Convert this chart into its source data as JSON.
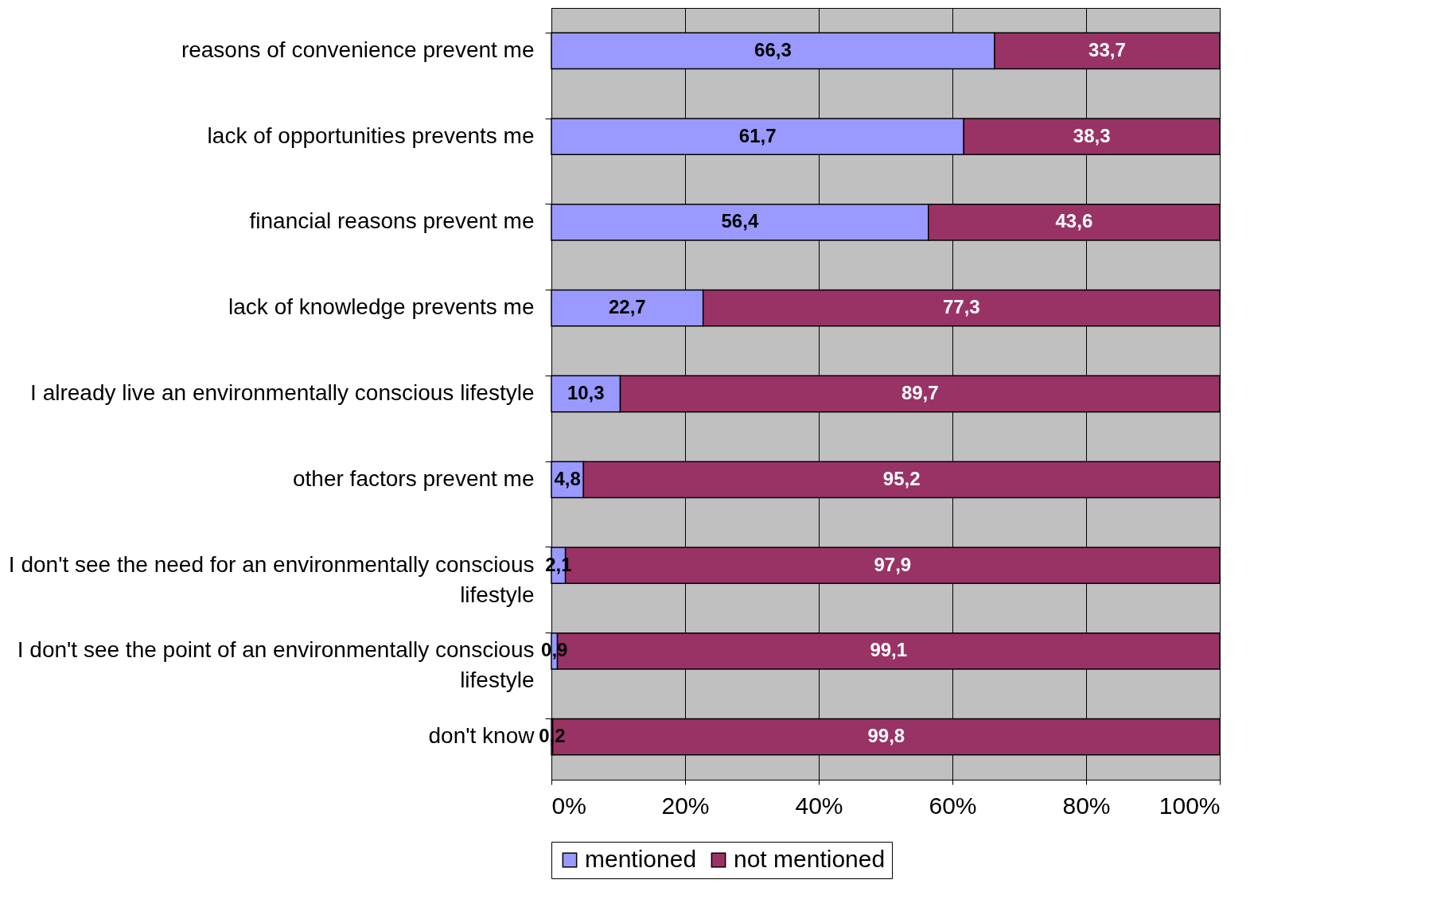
{
  "chart_data": {
    "type": "bar",
    "orientation": "horizontal",
    "stacked": true,
    "categories": [
      "reasons of convenience prevent me",
      "lack of opportunities prevents me",
      "financial reasons prevent me",
      "lack of knowledge prevents me",
      "I already live an environmentally conscious lifestyle",
      "other factors prevent me",
      "I don't see the need for an environmentally conscious lifestyle",
      "I don't see the point of an environmentally conscious lifestyle",
      "don't know"
    ],
    "series": [
      {
        "name": "mentioned",
        "color": "#9999ff",
        "values": [
          66.3,
          61.7,
          56.4,
          22.7,
          10.3,
          4.8,
          2.1,
          0.9,
          0.2
        ],
        "value_labels": [
          "66,3",
          "61,7",
          "56,4",
          "22,7",
          "10,3",
          "4,8",
          "2,1",
          "0,9",
          "0,2"
        ]
      },
      {
        "name": "not mentioned",
        "color": "#993366",
        "values": [
          33.7,
          38.3,
          43.6,
          77.3,
          89.7,
          95.2,
          97.9,
          99.1,
          99.8
        ],
        "value_labels": [
          "33,7",
          "38,3",
          "43,6",
          "77,3",
          "89,7",
          "95,2",
          "97,9",
          "99,1",
          "99,8"
        ]
      }
    ],
    "xlim": [
      0,
      100
    ],
    "xticks": [
      {
        "value": 0,
        "label": "0%"
      },
      {
        "value": 20,
        "label": "20%"
      },
      {
        "value": 40,
        "label": "40%"
      },
      {
        "value": 60,
        "label": "60%"
      },
      {
        "value": 80,
        "label": "80%"
      },
      {
        "value": 100,
        "label": "100%"
      }
    ],
    "grid": "x",
    "legend": "bottom"
  }
}
